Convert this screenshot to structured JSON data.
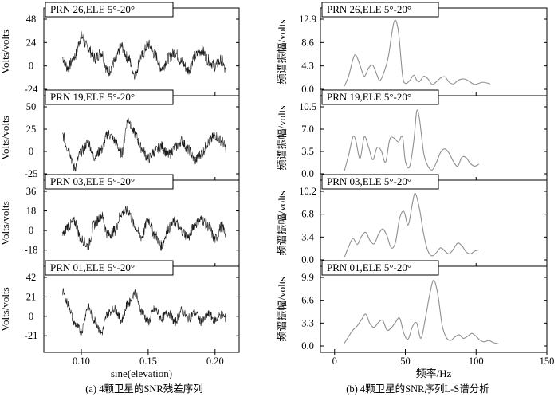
{
  "chart_data": [
    {
      "type": "line",
      "panel": "left",
      "caption": "(a) 4颗卫星的SNR残差序列",
      "xlabel": "sine(elevation)",
      "x_ticks": [
        "0.10",
        "0.15",
        "0.20"
      ],
      "xlim": [
        0.072,
        0.218
      ],
      "x_range": [
        0.086,
        0.208
      ],
      "ylabel": "Volts/volts",
      "subplots": [
        {
          "title": "PRN 26,ELE 5°-20°",
          "ylim": [
            -24,
            48
          ],
          "y_ticks": [
            "48",
            "24",
            "0",
            "-24"
          ],
          "x_anchor": [
            0.086,
            0.09,
            0.095,
            0.1,
            0.105,
            0.11,
            0.115,
            0.12,
            0.125,
            0.13,
            0.135,
            0.14,
            0.145,
            0.15,
            0.155,
            0.16,
            0.165,
            0.17,
            0.175,
            0.18,
            0.185,
            0.19,
            0.195,
            0.2,
            0.205,
            0.208
          ],
          "y_anchor": [
            8,
            -2,
            10,
            30,
            18,
            8,
            14,
            -6,
            4,
            20,
            8,
            -8,
            10,
            22,
            12,
            -2,
            8,
            14,
            4,
            -4,
            10,
            16,
            6,
            0,
            6,
            -6
          ],
          "noise": 6
        },
        {
          "title": "PRN 19,ELE 5°-20°",
          "ylim": [
            -25,
            50
          ],
          "y_ticks": [
            "50",
            "25",
            "0",
            "-25"
          ],
          "x_anchor": [
            0.086,
            0.09,
            0.095,
            0.1,
            0.105,
            0.11,
            0.115,
            0.12,
            0.125,
            0.13,
            0.135,
            0.14,
            0.145,
            0.15,
            0.155,
            0.16,
            0.165,
            0.17,
            0.175,
            0.18,
            0.185,
            0.19,
            0.195,
            0.2,
            0.205,
            0.208
          ],
          "y_anchor": [
            18,
            4,
            -18,
            0,
            10,
            -6,
            2,
            20,
            12,
            -2,
            36,
            20,
            4,
            -8,
            0,
            6,
            -4,
            4,
            12,
            2,
            -10,
            -2,
            10,
            18,
            12,
            4
          ],
          "noise": 6
        },
        {
          "title": "PRN 03,ELE 5°-20°",
          "ylim": [
            -27,
            36
          ],
          "y_ticks": [
            "36",
            "18",
            "0",
            "-18"
          ],
          "x_anchor": [
            0.086,
            0.09,
            0.095,
            0.1,
            0.105,
            0.11,
            0.115,
            0.12,
            0.125,
            0.13,
            0.135,
            0.14,
            0.145,
            0.15,
            0.155,
            0.16,
            0.165,
            0.17,
            0.175,
            0.18,
            0.185,
            0.19,
            0.195,
            0.2,
            0.205,
            0.208
          ],
          "y_anchor": [
            -4,
            4,
            8,
            -8,
            -14,
            6,
            14,
            -4,
            0,
            16,
            18,
            4,
            -6,
            10,
            -4,
            -14,
            2,
            8,
            0,
            -6,
            6,
            10,
            4,
            -8,
            4,
            -2
          ],
          "noise": 5
        },
        {
          "title": "PRN 01,ELE 5°-20°",
          "ylim": [
            -32,
            42
          ],
          "y_ticks": [
            "42",
            "21",
            "0",
            "-21"
          ],
          "x_anchor": [
            0.086,
            0.09,
            0.095,
            0.1,
            0.105,
            0.11,
            0.115,
            0.12,
            0.125,
            0.13,
            0.135,
            0.14,
            0.145,
            0.15,
            0.155,
            0.16,
            0.165,
            0.17,
            0.175,
            0.18,
            0.185,
            0.19,
            0.195,
            0.2,
            0.205,
            0.208
          ],
          "y_anchor": [
            26,
            14,
            -8,
            -16,
            10,
            -4,
            -18,
            4,
            8,
            -4,
            14,
            26,
            6,
            -6,
            8,
            -2,
            4,
            -6,
            6,
            -2,
            4,
            -6,
            2,
            -4,
            2,
            -2
          ],
          "noise": 5
        }
      ]
    },
    {
      "type": "line",
      "panel": "right",
      "caption": "(b) 4颗卫星的SNR序列L-S谱分析",
      "xlabel": "频率/Hz",
      "x_ticks": [
        "0",
        "50",
        "100",
        "150"
      ],
      "xlim": [
        -10,
        150
      ],
      "ylabel": "频谱振幅/volts",
      "subplots": [
        {
          "title": "PRN 26,ELE 5°-20°",
          "ylim": [
            0,
            12.9
          ],
          "y_ticks": [
            "12.9",
            "8.6",
            "4.3",
            "0.0"
          ],
          "freq": [
            7,
            10,
            13,
            15,
            18,
            21,
            24,
            27,
            30,
            32,
            35,
            38,
            42,
            45,
            48,
            50,
            53,
            56,
            58,
            60,
            63,
            66,
            69,
            72,
            75,
            78,
            81,
            84,
            87,
            90,
            93,
            96,
            99,
            102,
            105,
            110
          ],
          "amp": [
            0.6,
            2.5,
            5.5,
            6.3,
            4.4,
            2.4,
            3.9,
            4.4,
            2.6,
            1.6,
            3.2,
            6.0,
            12.4,
            10.8,
            2.6,
            1.1,
            1.6,
            2.6,
            1.7,
            1.4,
            2.4,
            1.9,
            0.9,
            1.4,
            2.1,
            2.3,
            1.3,
            1.0,
            1.6,
            1.9,
            1.8,
            1.3,
            0.9,
            1.1,
            1.3,
            1.0
          ]
        },
        {
          "title": "PRN 19,ELE 5°-20°",
          "ylim": [
            0,
            10.5
          ],
          "y_ticks": [
            "10.5",
            "7.0",
            "3.5",
            "0.0"
          ],
          "freq": [
            7,
            10,
            13,
            15,
            18,
            21,
            24,
            27,
            30,
            33,
            36,
            39,
            42,
            45,
            48,
            50,
            53,
            56,
            58,
            60,
            63,
            66,
            69,
            72,
            75,
            78,
            81,
            84,
            87,
            90,
            93,
            96,
            99,
            102
          ],
          "amp": [
            0.5,
            3.0,
            5.8,
            5.2,
            2.4,
            5.8,
            4.2,
            2.2,
            4.1,
            3.6,
            1.8,
            5.4,
            5.6,
            5.0,
            5.8,
            2.0,
            1.1,
            5.2,
            9.8,
            8.6,
            3.2,
            1.2,
            0.6,
            1.8,
            3.4,
            3.9,
            3.2,
            1.9,
            1.2,
            2.6,
            2.5,
            1.6,
            1.2,
            1.5
          ]
        },
        {
          "title": "PRN 03,ELE 5°-20°",
          "ylim": [
            0,
            10.2
          ],
          "y_ticks": [
            "10.2",
            "6.8",
            "3.4",
            "0.0"
          ],
          "freq": [
            7,
            10,
            13,
            16,
            19,
            22,
            25,
            28,
            31,
            34,
            37,
            40,
            43,
            46,
            49,
            52,
            55,
            57,
            60,
            63,
            66,
            69,
            72,
            75,
            78,
            81,
            84,
            87,
            90,
            93,
            96,
            99,
            102
          ],
          "amp": [
            0.4,
            2.0,
            3.2,
            2.3,
            3.5,
            4.1,
            2.9,
            2.4,
            3.8,
            4.6,
            3.6,
            1.8,
            2.6,
            6.2,
            7.2,
            5.2,
            8.4,
            9.9,
            7.6,
            3.8,
            1.3,
            0.6,
            1.1,
            1.8,
            1.3,
            0.9,
            1.6,
            2.5,
            2.1,
            1.2,
            0.9,
            1.3,
            1.5
          ]
        },
        {
          "title": "PRN 01,ELE 5°-20°",
          "ylim": [
            0,
            9.9
          ],
          "y_ticks": [
            "9.9",
            "6.6",
            "3.3",
            "0.0"
          ],
          "freq": [
            7,
            10,
            13,
            16,
            19,
            22,
            25,
            28,
            31,
            34,
            37,
            40,
            43,
            46,
            49,
            52,
            55,
            58,
            61,
            64,
            67,
            70,
            73,
            76,
            79,
            82,
            85,
            88,
            91,
            94,
            97,
            100,
            103,
            106,
            109,
            112,
            116
          ],
          "amp": [
            0.4,
            1.4,
            2.3,
            2.9,
            3.8,
            4.6,
            3.2,
            2.7,
            3.4,
            3.7,
            2.3,
            2.6,
            3.4,
            4.0,
            1.8,
            1.0,
            2.8,
            3.3,
            1.1,
            3.8,
            7.2,
            9.5,
            7.4,
            3.0,
            1.2,
            0.8,
            1.3,
            1.6,
            1.1,
            1.4,
            1.8,
            1.4,
            0.8,
            0.6,
            0.8,
            0.5,
            0.3
          ]
        }
      ]
    }
  ]
}
